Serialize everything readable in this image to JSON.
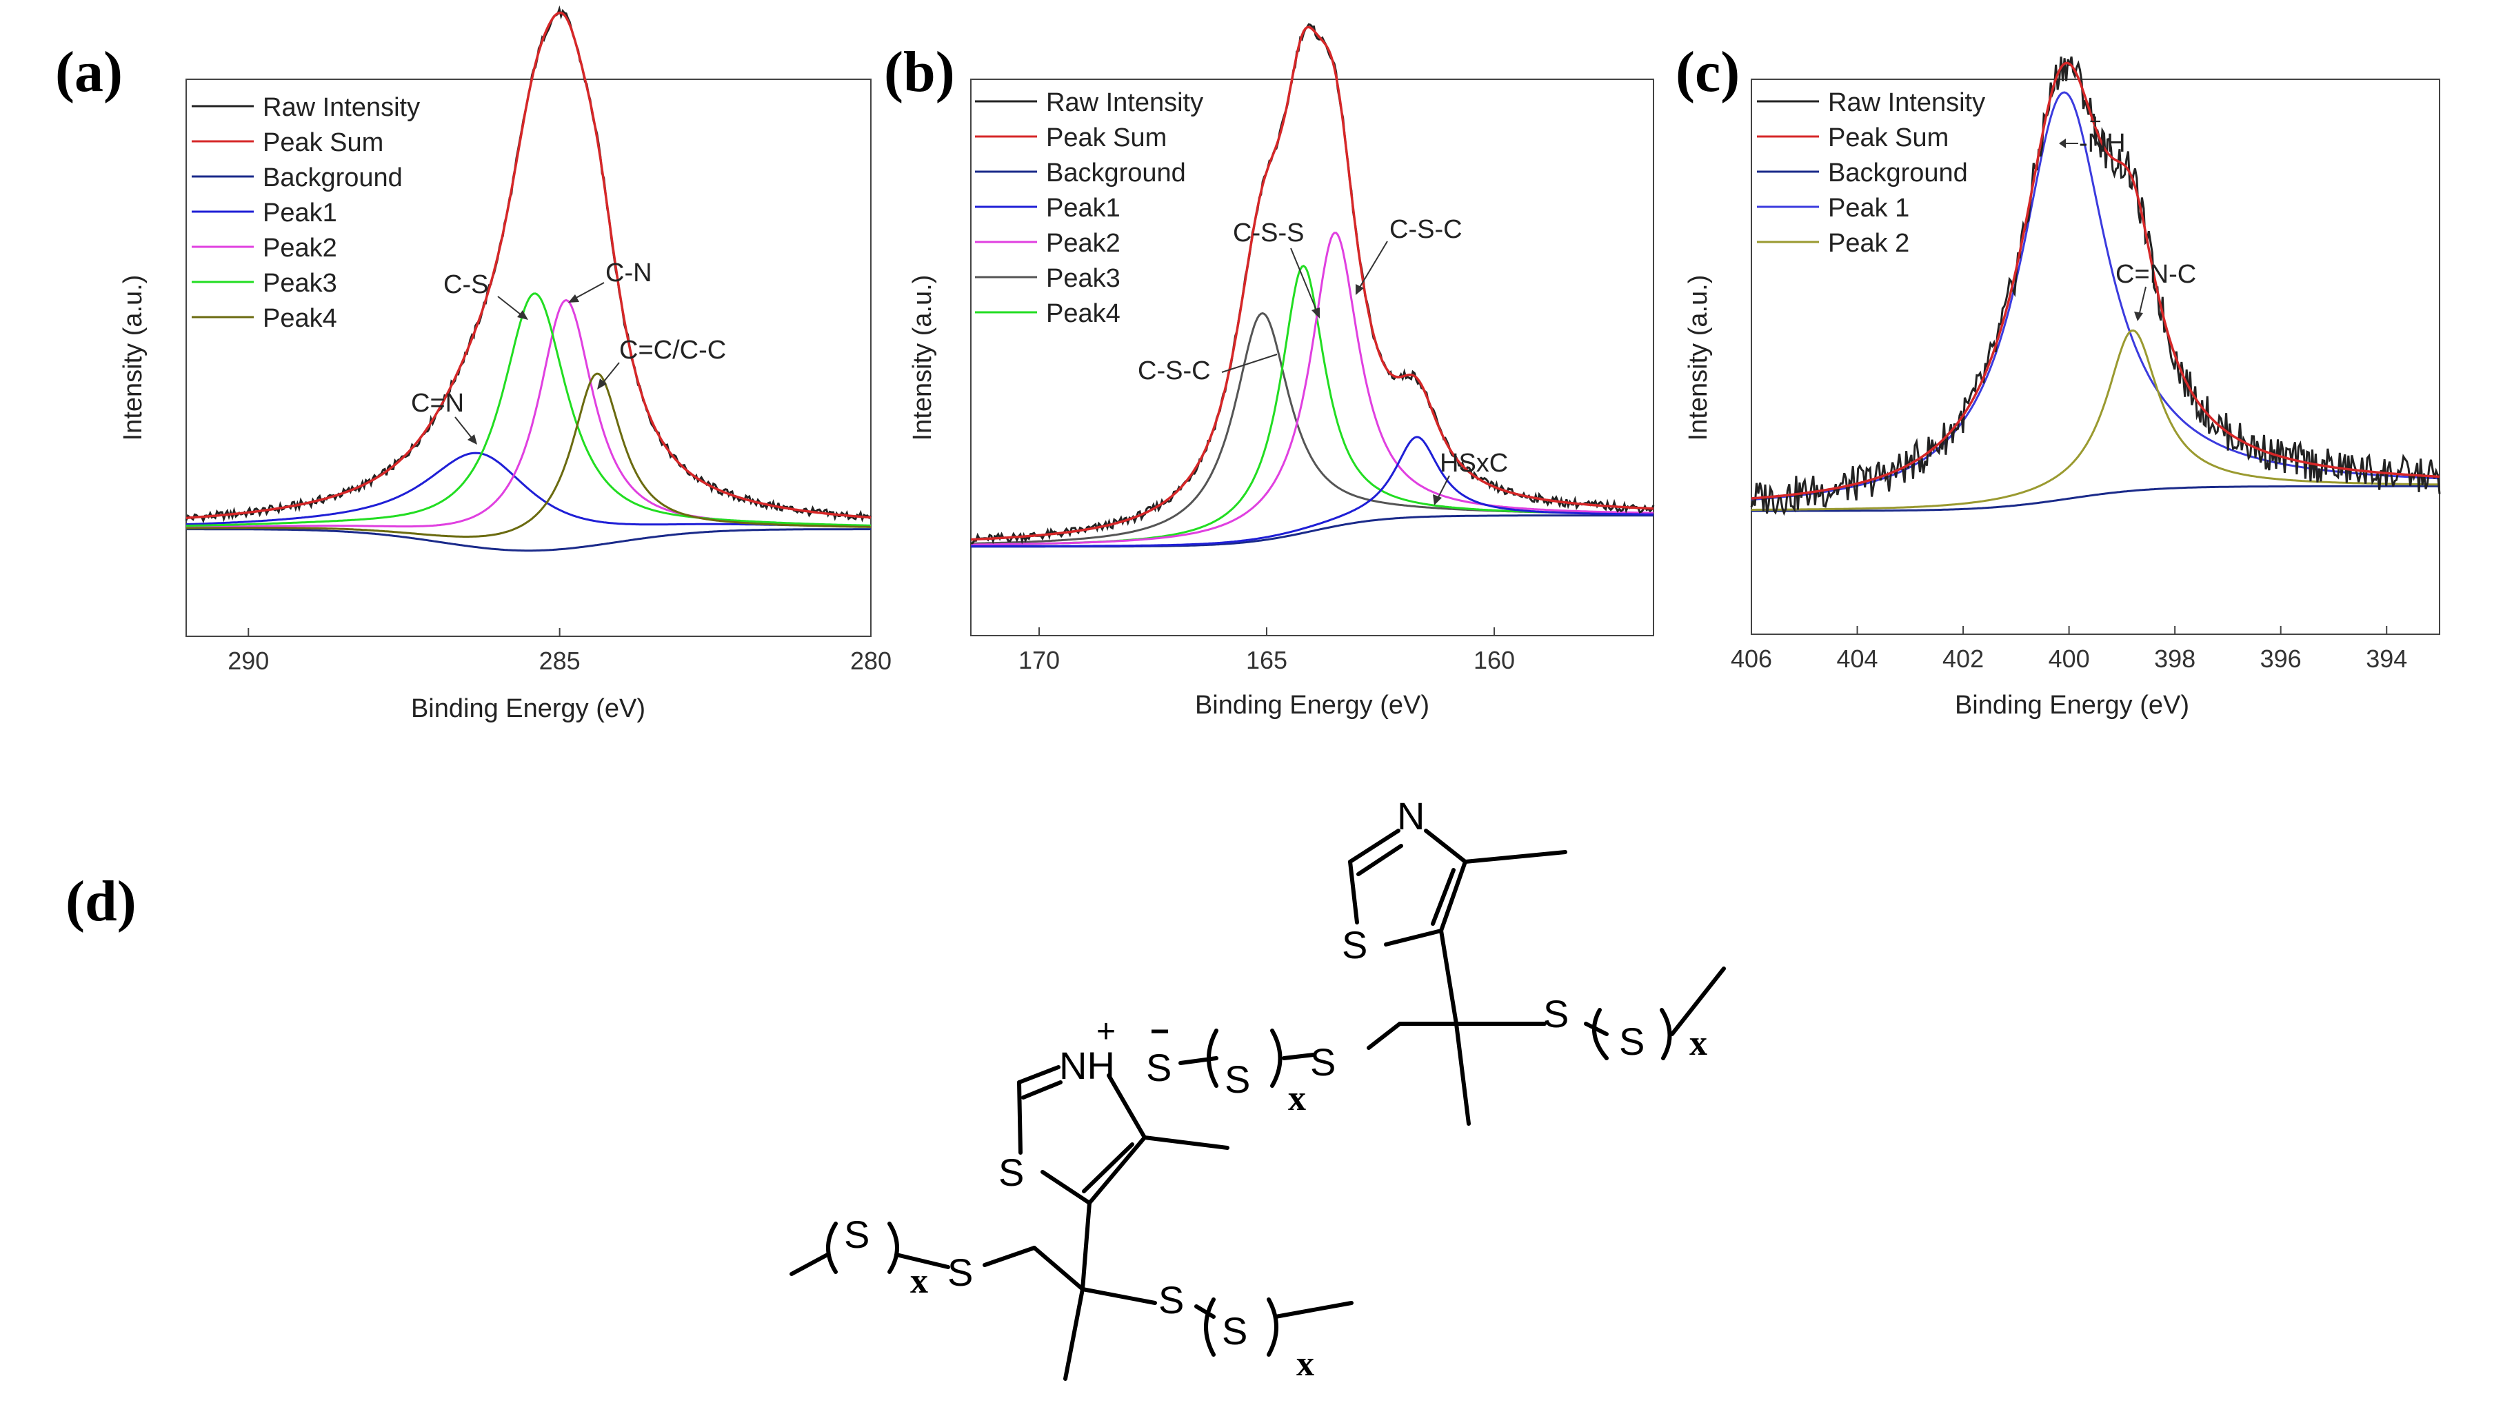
{
  "figure": {
    "panel_labels": [
      "(a)",
      "(b)",
      "(c)",
      "(d)"
    ]
  },
  "chart_data": [
    {
      "id": "a",
      "type": "line",
      "xlabel": "Binding Energy (eV)",
      "ylabel": "Intensity (a.u.)",
      "xlim": [
        291,
        280
      ],
      "xticks": [
        290,
        285,
        280
      ],
      "ylim": [
        -0.25,
        1.05
      ],
      "legend": [
        "Raw Intensity",
        "Peak Sum",
        "Background",
        "Peak1",
        "Peak2",
        "Peak3",
        "Peak4"
      ],
      "legend_colors": [
        "#222222",
        "#d62728",
        "#1a2a8a",
        "#1f1fd6",
        "#e040e0",
        "#22dd22",
        "#6b6b10"
      ],
      "background": {
        "left": 0.0,
        "right": 0.0,
        "center": 285.5,
        "step": 0.0,
        "dip": -0.05,
        "width": 2.0
      },
      "peaks": [
        {
          "name": "Peak1",
          "label": "C=N",
          "center": 286.3,
          "height": 0.22,
          "fwhm": 2.2,
          "color": "#1f1fd6"
        },
        {
          "name": "Peak2",
          "label": "C-N",
          "center": 284.9,
          "height": 0.58,
          "fwhm": 1.1,
          "color": "#e040e0"
        },
        {
          "name": "Peak3",
          "label": "C-S",
          "center": 285.4,
          "height": 0.6,
          "fwhm": 1.3,
          "color": "#22dd22"
        },
        {
          "name": "Peak4",
          "label": "C=C/C-C",
          "center": 284.4,
          "height": 0.4,
          "fwhm": 1.0,
          "color": "#6b6b10"
        }
      ],
      "annotations": [
        "C=N",
        "C-S",
        "C-N",
        "C=C/C-C"
      ]
    },
    {
      "id": "b",
      "type": "line",
      "xlabel": "Binding Energy (eV)",
      "ylabel": "Intensity (a.u.)",
      "xlim": [
        171.5,
        156.5
      ],
      "xticks": [
        170,
        165,
        160
      ],
      "ylim": [
        -0.2,
        1.05
      ],
      "legend": [
        "Raw Intensity",
        "Peak Sum",
        "Background",
        "Peak1",
        "Peak2",
        "Peak3",
        "Peak4"
      ],
      "legend_colors": [
        "#222222",
        "#d62728",
        "#1a2a8a",
        "#1f1fd6",
        "#e040e0",
        "#555555",
        "#22dd22"
      ],
      "background": {
        "left": 0.0,
        "right": -0.07,
        "center": 164.0,
        "step": 0.07,
        "dip": 0.0,
        "width": 1.5
      },
      "peaks": [
        {
          "name": "Peak3",
          "label": "C-S-C",
          "center": 165.1,
          "height": 0.51,
          "fwhm": 1.5,
          "color": "#555555"
        },
        {
          "name": "Peak4",
          "label": "C-S-S",
          "center": 164.2,
          "height": 0.6,
          "fwhm": 1.2,
          "color": "#22dd22"
        },
        {
          "name": "Peak2",
          "label": "C-S-C",
          "center": 163.5,
          "height": 0.66,
          "fwhm": 1.3,
          "color": "#e040e0"
        },
        {
          "name": "Peak1",
          "label": "HSxC",
          "center": 161.7,
          "height": 0.18,
          "fwhm": 1.2,
          "color": "#1f1fd6"
        }
      ],
      "annotations": [
        "C-S-S",
        "C-S-C",
        "C-S-C",
        "HSxC"
      ]
    },
    {
      "id": "c",
      "type": "line",
      "xlabel": "Binding Energy (eV)",
      "ylabel": "Intensity (a.u.)",
      "xlim": [
        406,
        393
      ],
      "xticks": [
        406,
        404,
        402,
        400,
        398,
        396,
        394
      ],
      "ylim": [
        -0.3,
        1.05
      ],
      "legend": [
        "Raw Intensity",
        "Peak Sum",
        "Background",
        "Peak 1",
        "Peak 2"
      ],
      "legend_colors": [
        "#222222",
        "#d62728",
        "#1a2a8a",
        "#3b3bde",
        "#9a9a30"
      ],
      "background": {
        "left": 0.0,
        "right": -0.06,
        "center": 400.0,
        "step": 0.06,
        "dip": 0.0,
        "width": 1.5
      },
      "peaks": [
        {
          "name": "Peak 1",
          "label": "-NH",
          "center": 400.1,
          "height": 0.99,
          "fwhm": 2.0,
          "color": "#3b3bde"
        },
        {
          "name": "Peak 2",
          "label": "C=N-C",
          "center": 398.8,
          "height": 0.39,
          "fwhm": 1.2,
          "color": "#9a9a30"
        }
      ],
      "annotations": [
        "-NH",
        "C=N-C"
      ],
      "annotation_charge": "+"
    }
  ],
  "structure": {
    "atoms": {
      "n_top": "N",
      "s_ring_top": "S",
      "s_right": "S",
      "s_right_repeat": "S",
      "x_right": "x",
      "s_minus": "S",
      "minus": "−",
      "s_mid_repeat": "S",
      "x_mid": "x",
      "s_mid_link": "S",
      "nh_plus": "NH",
      "plus": "+",
      "s_ring_bottom": "S",
      "s_left_repeat": "S",
      "x_left": "x",
      "s_left_link": "S",
      "s_bottom": "S",
      "s_bottom_repeat": "S",
      "x_bottom": "x"
    }
  }
}
